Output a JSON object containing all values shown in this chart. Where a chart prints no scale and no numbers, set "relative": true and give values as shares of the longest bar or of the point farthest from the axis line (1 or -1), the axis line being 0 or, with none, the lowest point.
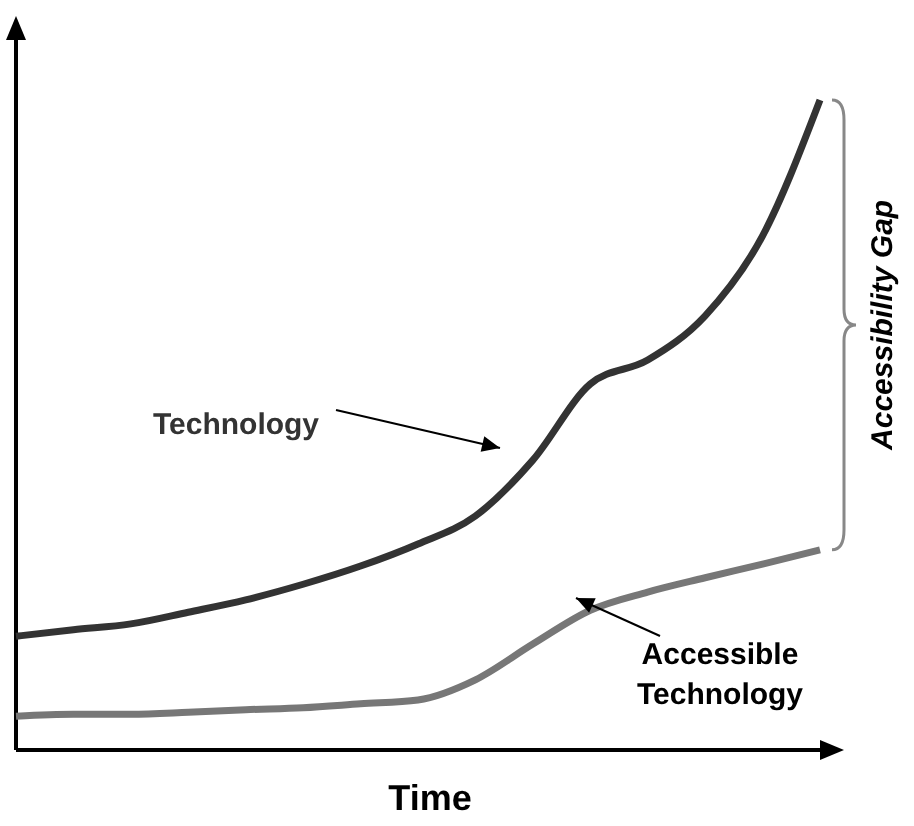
{
  "chart_data": {
    "type": "line",
    "relative": true,
    "xlabel": "Time",
    "categories": [
      null,
      null,
      null,
      null,
      null,
      null,
      null,
      null,
      null,
      null,
      null,
      null,
      null,
      null,
      null
    ],
    "series": [
      {
        "name": "Technology",
        "color": "#333333",
        "values": [
          0.175,
          0.185,
          0.194,
          0.212,
          0.231,
          0.255,
          0.283,
          0.317,
          0.36,
          0.446,
          0.563,
          0.6,
          0.668,
          0.791,
          1
        ]
      },
      {
        "name": "Accessible Technology",
        "color": "#777777",
        "values": [
          0.052,
          0.055,
          0.055,
          0.058,
          0.062,
          0.065,
          0.071,
          0.077,
          0.108,
          0.163,
          0.215,
          0.243,
          0.265,
          0.286,
          0.308
        ]
      }
    ],
    "annotations": [
      "Accessibility Gap"
    ],
    "marker": "none",
    "line_style": "solid"
  }
}
